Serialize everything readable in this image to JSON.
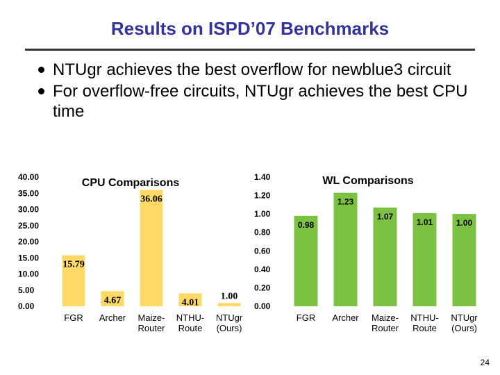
{
  "slide": {
    "title": "Results on ISPD’07 Benchmarks",
    "bullets": [
      "NTUgr achieves the best overflow for newblue3 circuit",
      "For overflow-free circuits, NTUgr achieves the best CPU time"
    ],
    "page_number": "24"
  },
  "colors": {
    "title": "#333399",
    "cpu_bar": "#FFD966",
    "wl_bar": "#7CC242"
  },
  "chart_data": [
    {
      "type": "bar",
      "title": "CPU Comparisons",
      "categories": [
        "FGR",
        "Archer",
        "Maize-Router",
        "NTHU-Route",
        "NTUgr (Ours)"
      ],
      "category_lines": [
        [
          "FGR"
        ],
        [
          "Archer"
        ],
        [
          "Maize-",
          "Router"
        ],
        [
          "NTHU-",
          "Route"
        ],
        [
          "NTUgr",
          "(Ours)"
        ]
      ],
      "values": [
        15.79,
        4.67,
        36.06,
        4.01,
        1.0
      ],
      "data_labels": [
        "15.79",
        "4.67",
        "36.06",
        "4.01",
        "1.00"
      ],
      "label_positions": [
        "inside-top",
        "inside-top",
        "inside-top",
        "inside-top",
        "above"
      ],
      "ylim": [
        0,
        40
      ],
      "yticks": [
        "0.00",
        "5.00",
        "10.00",
        "15.00",
        "20.00",
        "25.00",
        "30.00",
        "35.00",
        "40.00"
      ],
      "xlabel": "",
      "ylabel": "",
      "grid": false,
      "legend": "none"
    },
    {
      "type": "bar",
      "title": "WL Comparisons",
      "categories": [
        "FGR",
        "Archer",
        "Maize-Router",
        "NTHU-Route",
        "NTUgr (Ours)"
      ],
      "category_lines": [
        [
          "FGR"
        ],
        [
          "Archer"
        ],
        [
          "Maize-",
          "Router"
        ],
        [
          "NTHU-",
          "Route"
        ],
        [
          "NTUgr",
          "(Ours)"
        ]
      ],
      "values": [
        0.98,
        1.23,
        1.07,
        1.01,
        1.0
      ],
      "data_labels": [
        "0.98",
        "1.23",
        "1.07",
        "1.01",
        "1.00"
      ],
      "label_positions": [
        "inside-top",
        "inside-top",
        "inside-top",
        "inside-top",
        "inside-top"
      ],
      "ylim": [
        0,
        1.4
      ],
      "yticks": [
        "0.00",
        "0.20",
        "0.40",
        "0.60",
        "0.80",
        "1.00",
        "1.20",
        "1.40"
      ],
      "xlabel": "",
      "ylabel": "",
      "grid": false,
      "legend": "none"
    }
  ]
}
